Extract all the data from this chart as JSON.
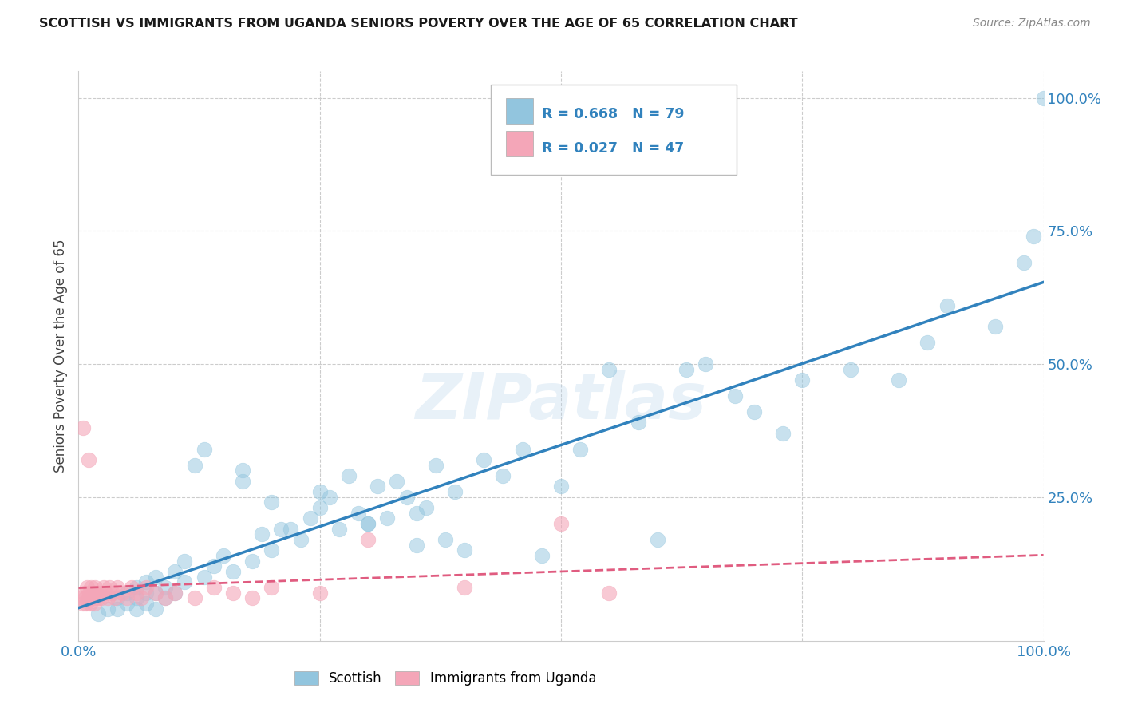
{
  "title": "SCOTTISH VS IMMIGRANTS FROM UGANDA SENIORS POVERTY OVER THE AGE OF 65 CORRELATION CHART",
  "source": "Source: ZipAtlas.com",
  "ylabel": "Seniors Poverty Over the Age of 65",
  "xlim": [
    0,
    1
  ],
  "ylim": [
    -0.02,
    1.05
  ],
  "xticks": [
    0,
    0.25,
    0.5,
    0.75,
    1.0
  ],
  "xticklabels": [
    "0.0%",
    "",
    "",
    "",
    "100.0%"
  ],
  "yticks": [
    0,
    0.25,
    0.5,
    0.75,
    1.0
  ],
  "yticklabels": [
    "",
    "25.0%",
    "50.0%",
    "75.0%",
    "100.0%"
  ],
  "watermark": "ZIPatlas",
  "scottish_color": "#92c5de",
  "uganda_color": "#f4a6b8",
  "scottish_R": 0.668,
  "scottish_N": 79,
  "uganda_R": 0.027,
  "uganda_N": 47,
  "scottish_line_color": "#3182bd",
  "uganda_line_color": "#e05c80",
  "tick_color": "#3182bd",
  "background_color": "#ffffff",
  "grid_color": "#cccccc",
  "scottish_scatter_x": [
    0.02,
    0.03,
    0.04,
    0.04,
    0.05,
    0.05,
    0.06,
    0.06,
    0.06,
    0.07,
    0.07,
    0.07,
    0.08,
    0.08,
    0.08,
    0.09,
    0.09,
    0.1,
    0.1,
    0.11,
    0.11,
    0.12,
    0.13,
    0.13,
    0.14,
    0.15,
    0.16,
    0.17,
    0.17,
    0.18,
    0.19,
    0.2,
    0.2,
    0.21,
    0.22,
    0.23,
    0.24,
    0.25,
    0.25,
    0.26,
    0.27,
    0.28,
    0.29,
    0.3,
    0.31,
    0.32,
    0.33,
    0.34,
    0.35,
    0.36,
    0.37,
    0.38,
    0.39,
    0.4,
    0.42,
    0.44,
    0.46,
    0.48,
    0.5,
    0.52,
    0.55,
    0.58,
    0.6,
    0.63,
    0.65,
    0.68,
    0.7,
    0.73,
    0.75,
    0.8,
    0.85,
    0.88,
    0.9,
    0.95,
    0.98,
    0.99,
    1.0,
    0.3,
    0.35
  ],
  "scottish_scatter_y": [
    0.03,
    0.04,
    0.04,
    0.06,
    0.05,
    0.07,
    0.04,
    0.06,
    0.08,
    0.05,
    0.07,
    0.09,
    0.04,
    0.07,
    0.1,
    0.06,
    0.08,
    0.07,
    0.11,
    0.09,
    0.13,
    0.31,
    0.34,
    0.1,
    0.12,
    0.14,
    0.11,
    0.28,
    0.3,
    0.13,
    0.18,
    0.15,
    0.24,
    0.19,
    0.19,
    0.17,
    0.21,
    0.26,
    0.23,
    0.25,
    0.19,
    0.29,
    0.22,
    0.2,
    0.27,
    0.21,
    0.28,
    0.25,
    0.16,
    0.23,
    0.31,
    0.17,
    0.26,
    0.15,
    0.32,
    0.29,
    0.34,
    0.14,
    0.27,
    0.34,
    0.49,
    0.39,
    0.17,
    0.49,
    0.5,
    0.44,
    0.41,
    0.37,
    0.47,
    0.49,
    0.47,
    0.54,
    0.61,
    0.57,
    0.69,
    0.74,
    1.0,
    0.2,
    0.22
  ],
  "uganda_scatter_x": [
    0.003,
    0.005,
    0.006,
    0.007,
    0.008,
    0.009,
    0.01,
    0.011,
    0.012,
    0.013,
    0.014,
    0.015,
    0.016,
    0.017,
    0.018,
    0.019,
    0.02,
    0.022,
    0.024,
    0.026,
    0.028,
    0.03,
    0.032,
    0.035,
    0.038,
    0.04,
    0.045,
    0.05,
    0.055,
    0.06,
    0.065,
    0.07,
    0.08,
    0.09,
    0.1,
    0.12,
    0.14,
    0.16,
    0.18,
    0.2,
    0.25,
    0.3,
    0.4,
    0.5,
    0.55,
    0.005,
    0.01
  ],
  "uganda_scatter_y": [
    0.06,
    0.05,
    0.07,
    0.06,
    0.05,
    0.08,
    0.06,
    0.07,
    0.05,
    0.08,
    0.06,
    0.07,
    0.05,
    0.08,
    0.06,
    0.07,
    0.06,
    0.07,
    0.06,
    0.08,
    0.07,
    0.06,
    0.08,
    0.07,
    0.06,
    0.08,
    0.07,
    0.06,
    0.08,
    0.07,
    0.06,
    0.08,
    0.07,
    0.06,
    0.07,
    0.06,
    0.08,
    0.07,
    0.06,
    0.08,
    0.07,
    0.17,
    0.08,
    0.2,
    0.07,
    0.38,
    0.32
  ]
}
